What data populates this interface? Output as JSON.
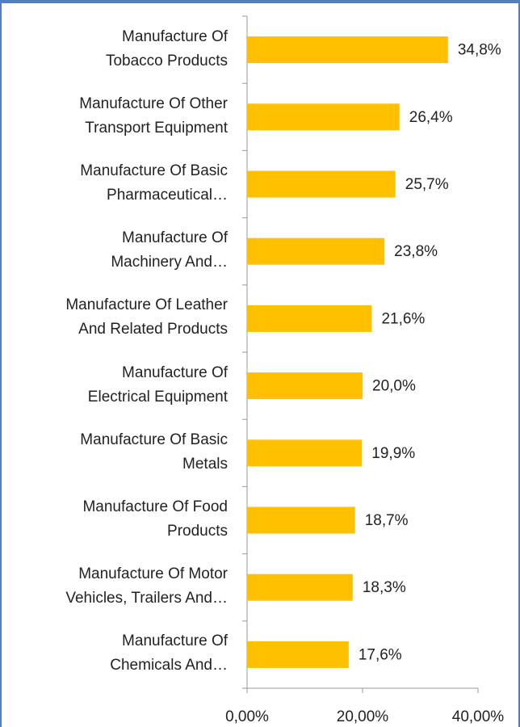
{
  "chart_data": {
    "type": "bar",
    "orientation": "horizontal",
    "categories": [
      "Manufacture Of\nTobacco Products",
      "Manufacture Of Other\nTransport Equipment",
      "Manufacture Of Basic\nPharmaceutical…",
      "Manufacture Of\nMachinery And…",
      "Manufacture Of Leather\nAnd Related Products",
      "Manufacture Of\nElectrical Equipment",
      "Manufacture Of Basic\nMetals",
      "Manufacture Of Food\nProducts",
      "Manufacture Of Motor\nVehicles, Trailers And…",
      "Manufacture Of\nChemicals And…"
    ],
    "values": [
      34.8,
      26.4,
      25.7,
      23.8,
      21.6,
      20.0,
      19.9,
      18.7,
      18.3,
      17.6
    ],
    "value_labels": [
      "34,8%",
      "26,4%",
      "25,7%",
      "23,8%",
      "21,6%",
      "20,0%",
      "19,9%",
      "18,7%",
      "18,3%",
      "17,6%"
    ],
    "color": "#ffc000",
    "xlim": [
      0,
      40
    ],
    "xticks": [
      {
        "value": 0,
        "label": "0,00%"
      },
      {
        "value": 20,
        "label": "20,00%"
      },
      {
        "value": 40,
        "label": "40,00%"
      }
    ],
    "grid": false
  }
}
